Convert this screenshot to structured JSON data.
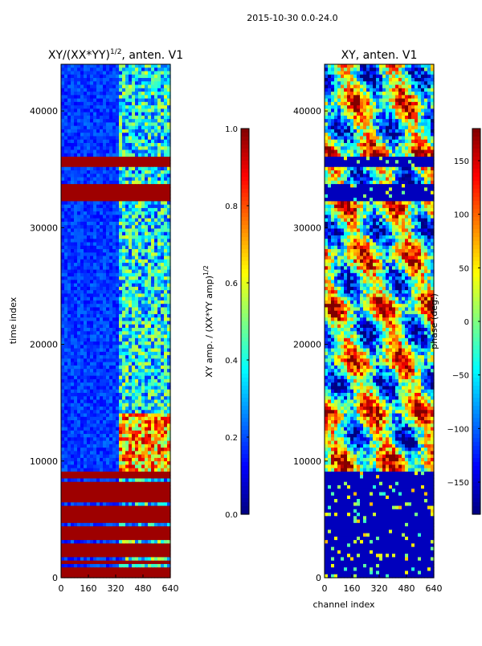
{
  "suptitle": "2015-10-30 0.0-24.0",
  "chart_data": [
    {
      "type": "heatmap",
      "title": "XY/(XX*YY)",
      "title_sup": "1/2",
      "title_suffix": ", anten. V1",
      "xlabel": "",
      "ylabel": "time index",
      "xlim": [
        0,
        640
      ],
      "ylim": [
        0,
        44000
      ],
      "xticks": [
        "0",
        "160",
        "320",
        "480",
        "640"
      ],
      "xtick_values": [
        0,
        160,
        320,
        480,
        640
      ],
      "yticks": [
        "0",
        "10000",
        "20000",
        "30000",
        "40000"
      ],
      "ytick_values": [
        0,
        10000,
        20000,
        30000,
        40000
      ],
      "colormap": "jet",
      "colorbar": {
        "label": "XY amp. / (XX*YY amp)",
        "label_sup": "1/2",
        "range": [
          0.0,
          1.0
        ],
        "ticks": [
          "0.0",
          "0.2",
          "0.4",
          "0.6",
          "0.8",
          "1.0"
        ],
        "tick_values": [
          0.0,
          0.2,
          0.4,
          0.6,
          0.8,
          1.0
        ]
      },
      "saturated_time_bands": [
        [
          0,
          900
        ],
        [
          1100,
          1600
        ],
        [
          1900,
          3000
        ],
        [
          3200,
          4400
        ],
        [
          4600,
          5200
        ],
        [
          5400,
          6200
        ],
        [
          6400,
          7200
        ],
        [
          7400,
          8300
        ],
        [
          8500,
          9000
        ],
        [
          32300,
          33700
        ],
        [
          35300,
          36200
        ]
      ],
      "bright_channel_band": [
        340,
        640
      ],
      "bright_time_band": [
        9000,
        14000
      ]
    },
    {
      "type": "heatmap",
      "title": "XY, anten. V1",
      "xlabel": "channel index",
      "ylabel": "",
      "xlim": [
        0,
        640
      ],
      "ylim": [
        0,
        44000
      ],
      "xticks": [
        "0",
        "160",
        "320",
        "480",
        "640"
      ],
      "xtick_values": [
        0,
        160,
        320,
        480,
        640
      ],
      "yticks": [
        "0",
        "10000",
        "20000",
        "30000",
        "40000"
      ],
      "ytick_values": [
        0,
        10000,
        20000,
        30000,
        40000
      ],
      "colormap": "jet",
      "colorbar": {
        "label": "phase (deg.)",
        "range": [
          -180,
          180
        ],
        "ticks": [
          "−150",
          "−100",
          "−50",
          "0",
          "50",
          "100",
          "150"
        ],
        "tick_values": [
          -150,
          -100,
          -50,
          0,
          50,
          100,
          150
        ]
      },
      "flat_time_bands": [
        [
          0,
          9000
        ],
        [
          32300,
          33700
        ],
        [
          35300,
          36200
        ]
      ]
    }
  ]
}
